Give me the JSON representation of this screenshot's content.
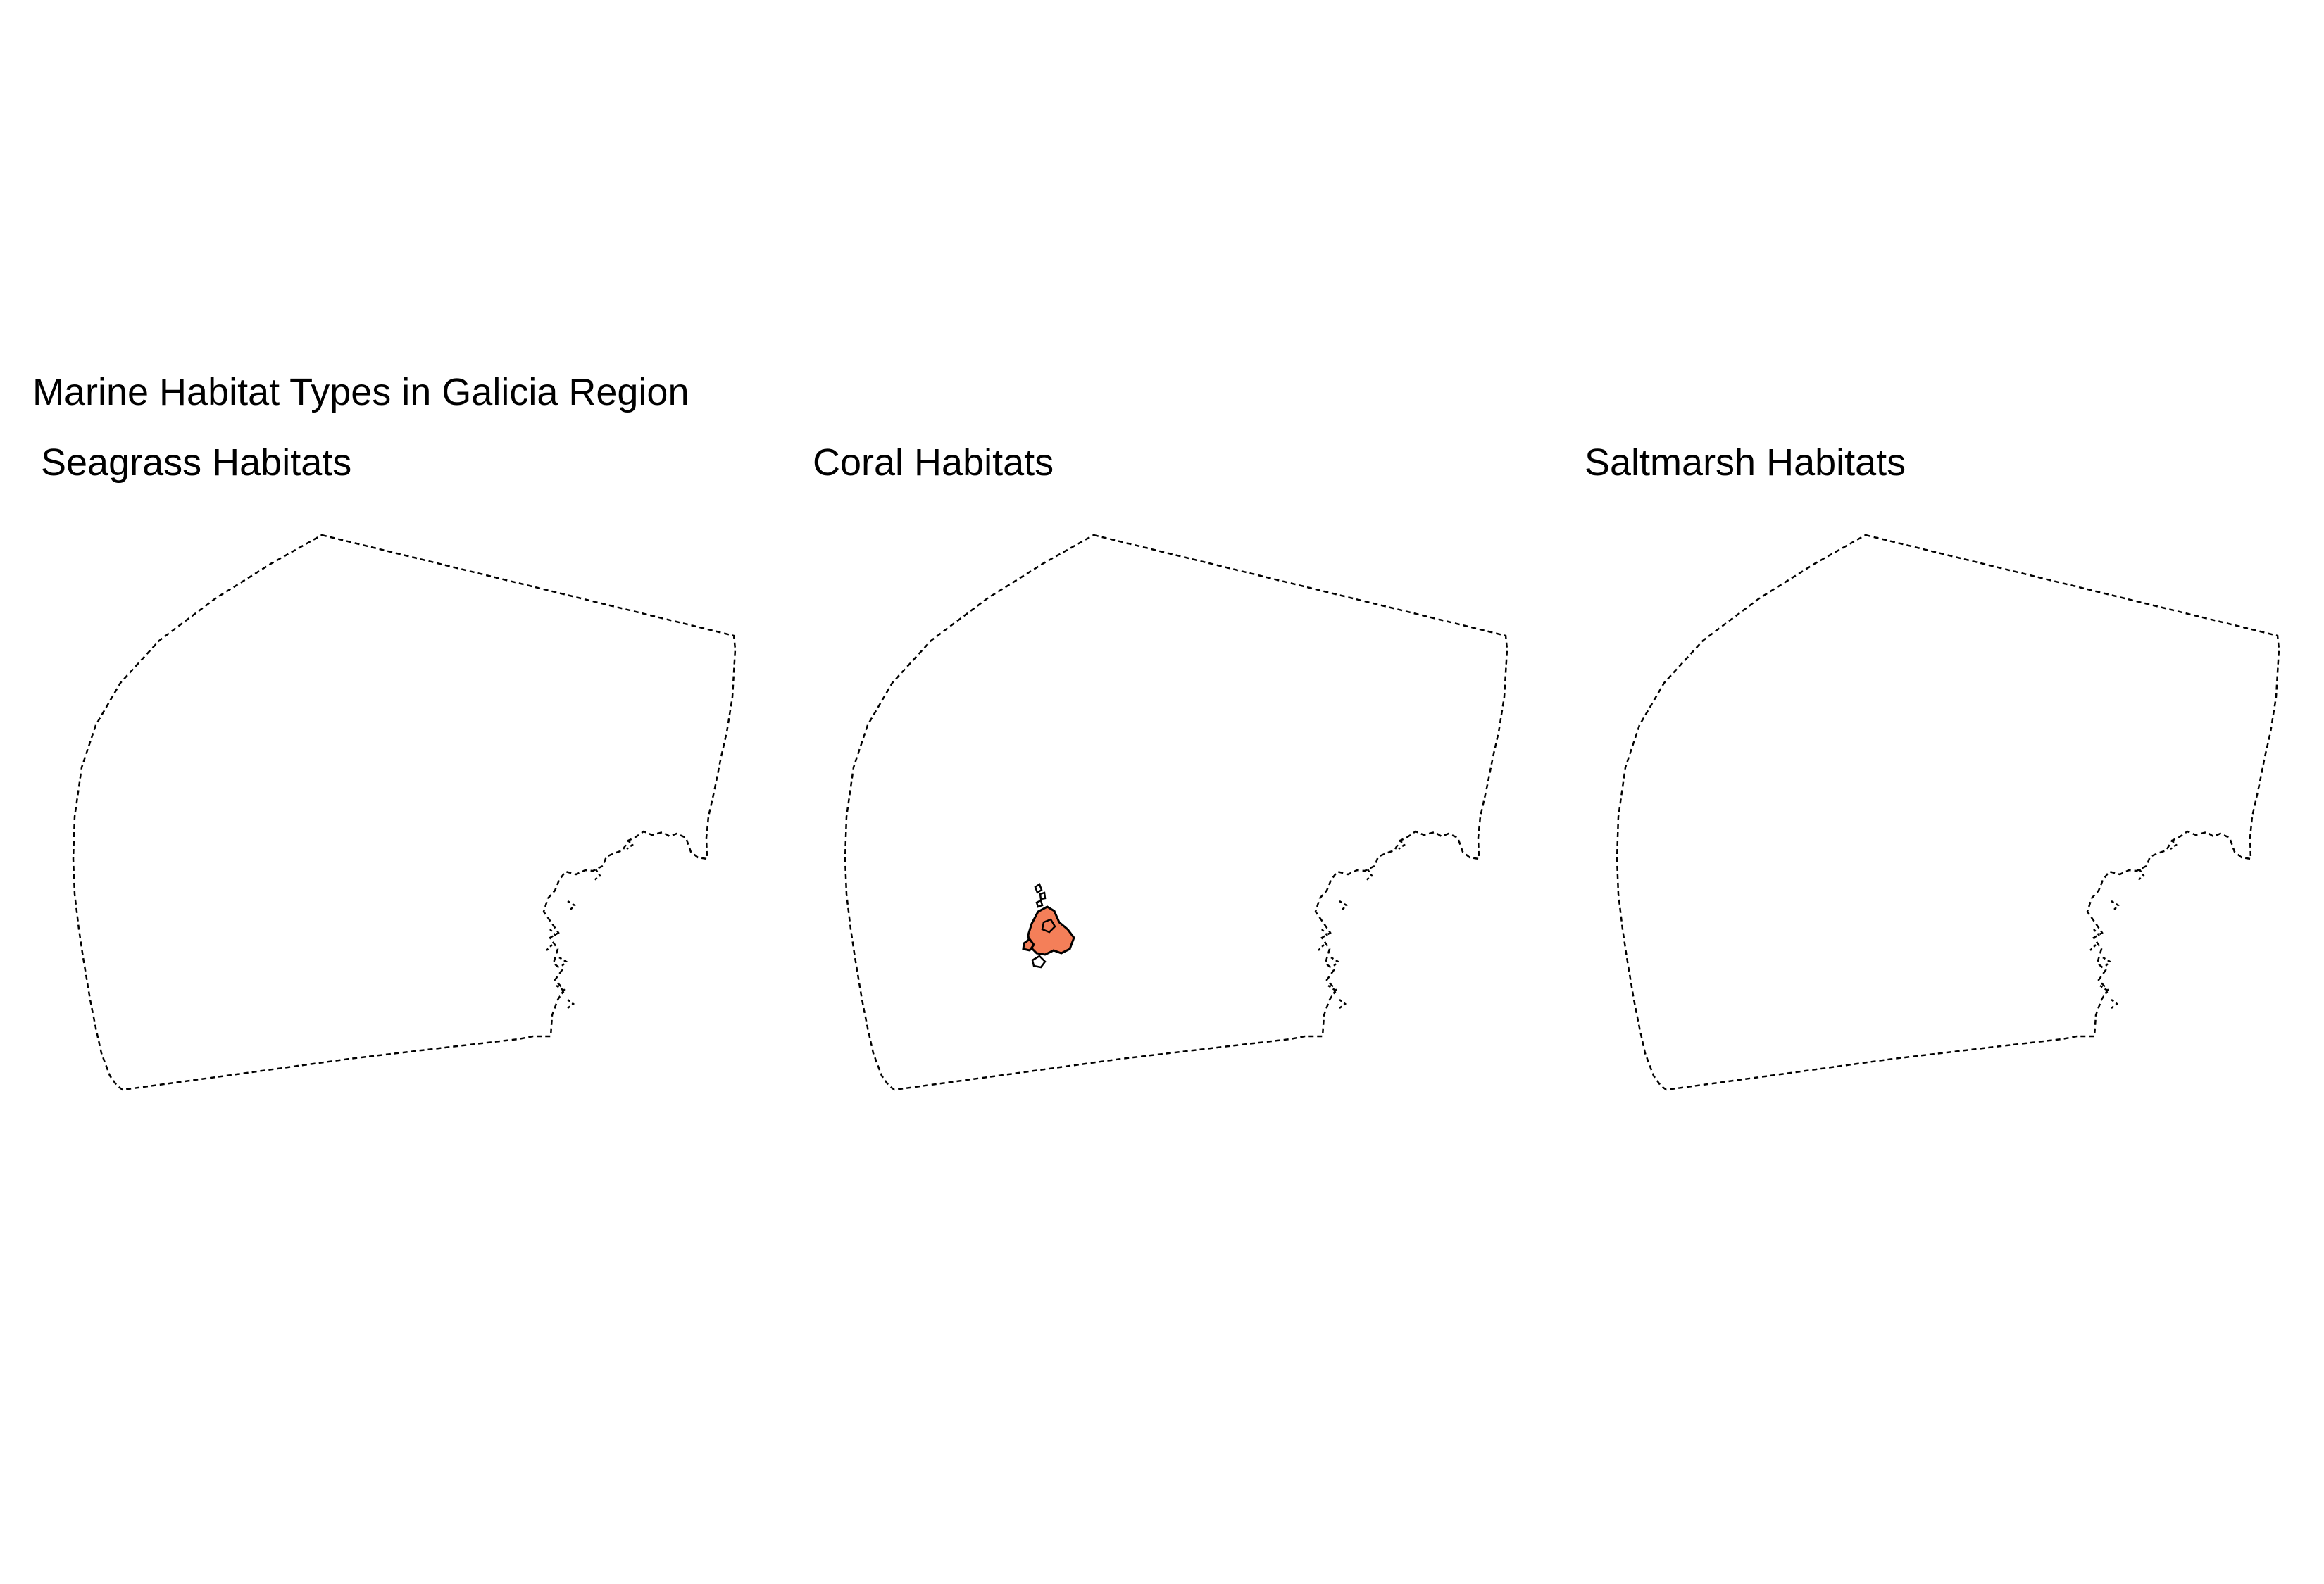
{
  "title": "Marine Habitat Types in Galicia Region",
  "panels": [
    {
      "title": "Seagrass Habitats",
      "habitat_present": false
    },
    {
      "title": "Coral Habitats",
      "habitat_present": true
    },
    {
      "title": "Saltmarsh Habitats",
      "habitat_present": false
    }
  ],
  "colors": {
    "boundary": "#000000",
    "coral_fill": "#F47F59",
    "background": "#ffffff"
  }
}
